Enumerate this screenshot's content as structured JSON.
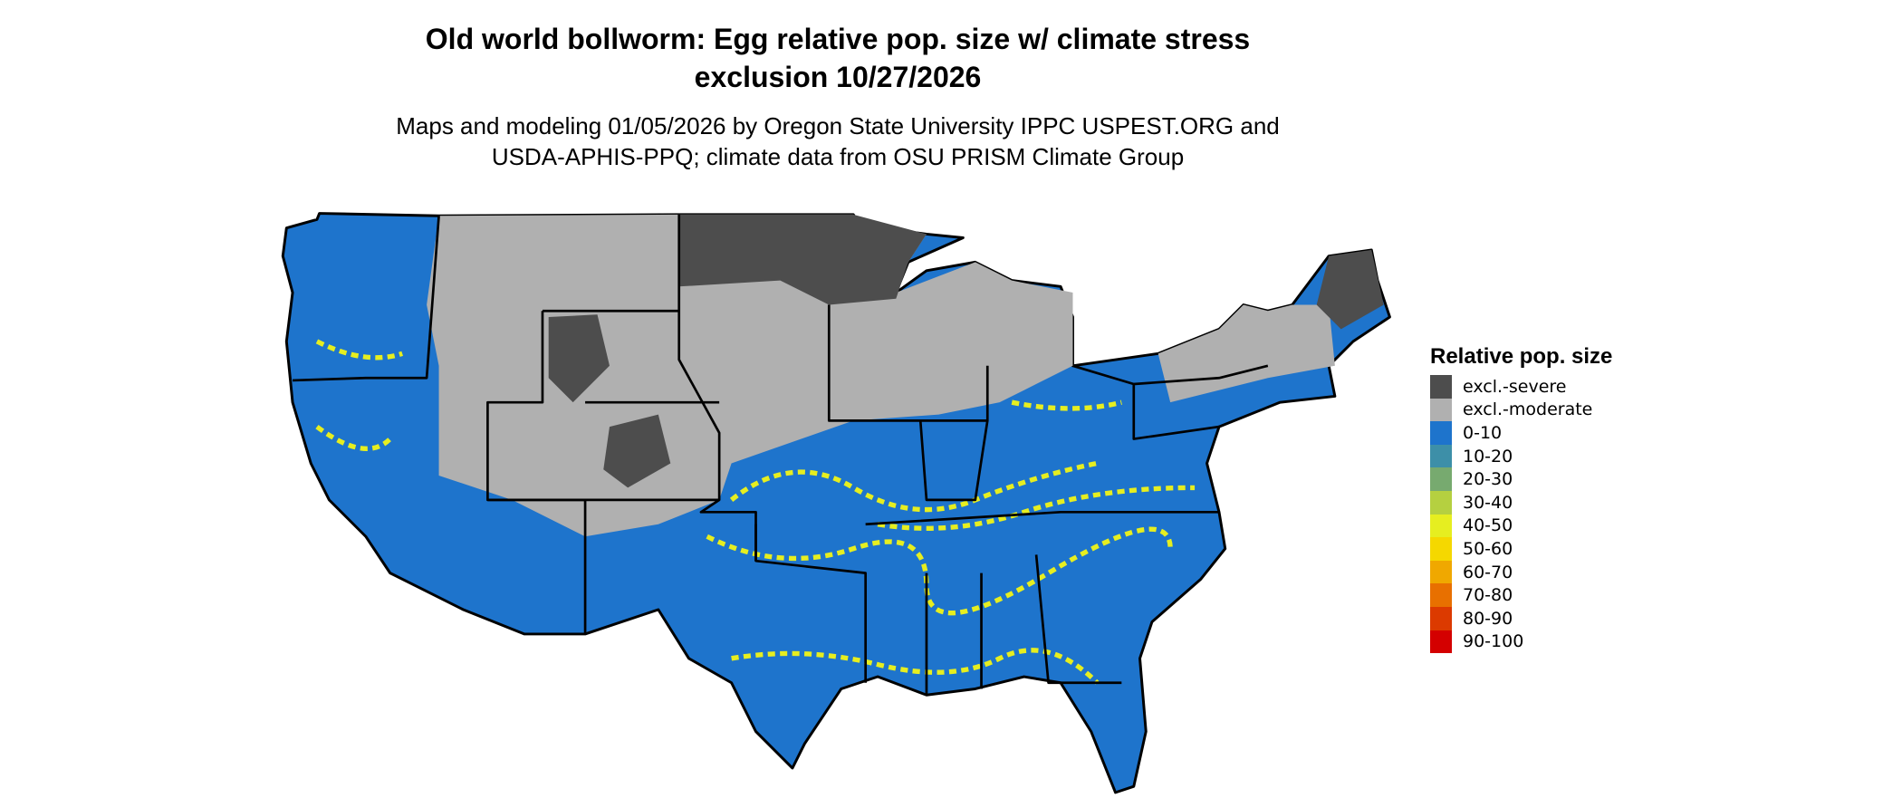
{
  "title": "Old world bollworm: Egg relative pop. size w/ climate stress exclusion 10/27/2026",
  "subtitle": "Maps and modeling 01/05/2026 by Oregon State University IPPC USPEST.ORG and USDA-APHIS-PPQ; climate data from OSU PRISM Climate Group",
  "legend": {
    "title": "Relative pop. size",
    "items": [
      {
        "label": "excl.-severe",
        "color": "#4d4d4d"
      },
      {
        "label": "excl.-moderate",
        "color": "#b0b0b0"
      },
      {
        "label": "0-10",
        "color": "#1e74cc"
      },
      {
        "label": "10-20",
        "color": "#3d8fa8"
      },
      {
        "label": "20-30",
        "color": "#77aa6f"
      },
      {
        "label": "30-40",
        "color": "#b5d040"
      },
      {
        "label": "40-50",
        "color": "#e6ee20"
      },
      {
        "label": "50-60",
        "color": "#f5d800"
      },
      {
        "label": "60-70",
        "color": "#f0a800"
      },
      {
        "label": "70-80",
        "color": "#e87000"
      },
      {
        "label": "80-90",
        "color": "#dc3a00"
      },
      {
        "label": "90-100",
        "color": "#d40000"
      }
    ]
  }
}
